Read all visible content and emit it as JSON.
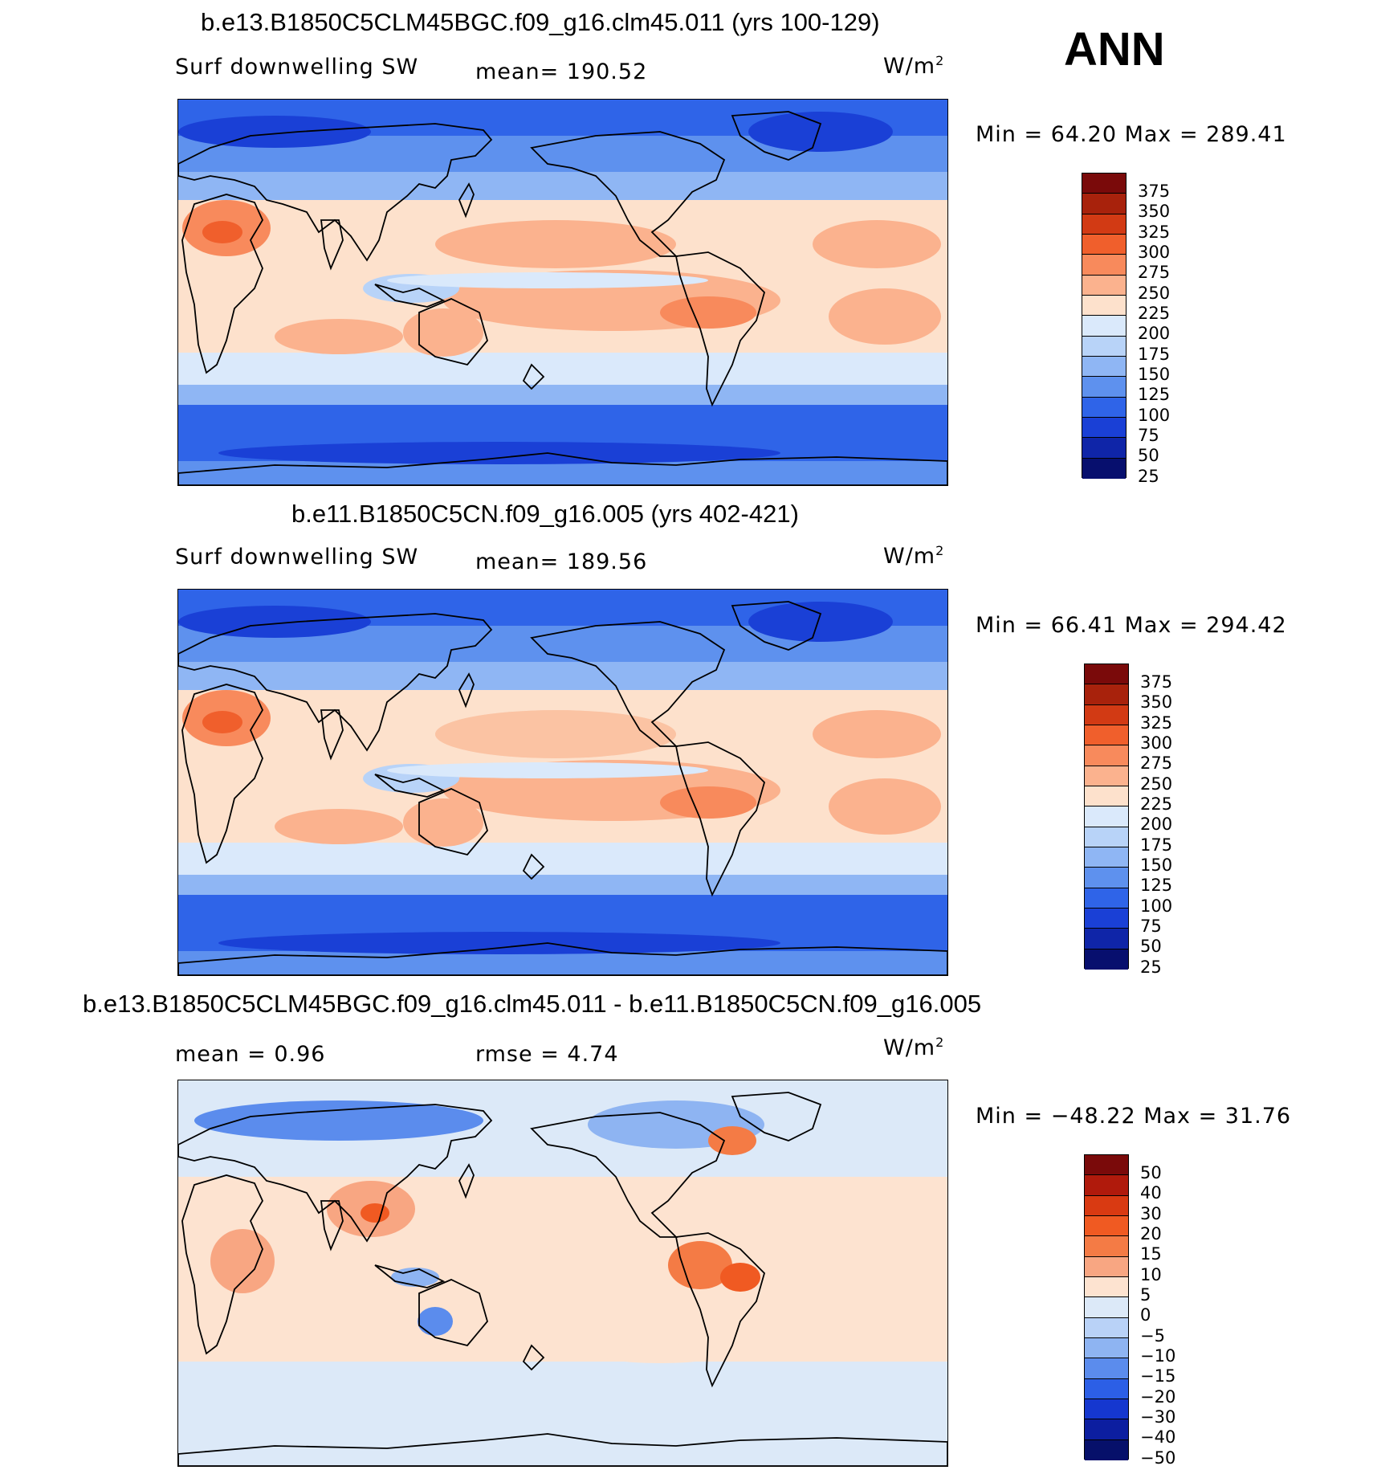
{
  "season": "ANN",
  "panels": [
    {
      "title": "b.e13.B1850C5CLM45BGC.f09_g16.clm45.011 (yrs 100-129)",
      "variable": "Surf downwelling SW",
      "mean_text": "mean=  190.52",
      "units": "W/m",
      "units_sup": "2",
      "minmax_text": "Min =   64.20  Max  =  289.41",
      "min": 64.2,
      "max": 289.41,
      "levels": [
        "375",
        "350",
        "325",
        "300",
        "275",
        "250",
        "225",
        "200",
        "175",
        "150",
        "125",
        "100",
        "75",
        "50",
        "25"
      ]
    },
    {
      "title": "b.e11.B1850C5CN.f09_g16.005 (yrs 402-421)",
      "variable": "Surf downwelling SW",
      "mean_text": "mean=  189.56",
      "units": "W/m",
      "units_sup": "2",
      "minmax_text": "Min =   66.41  Max  =  294.42",
      "min": 66.41,
      "max": 294.42,
      "levels": [
        "375",
        "350",
        "325",
        "300",
        "275",
        "250",
        "225",
        "200",
        "175",
        "150",
        "125",
        "100",
        "75",
        "50",
        "25"
      ]
    },
    {
      "title": "b.e13.B1850C5CLM45BGC.f09_g16.clm45.011 - b.e11.B1850C5CN.f09_g16.005",
      "mean_text": "mean  =     0.96",
      "rmse_text": "rmse  =     4.74",
      "units": "W/m",
      "units_sup": "2",
      "minmax_text": "Min  = −48.22  Max  =    31.76",
      "min": -48.22,
      "max": 31.76,
      "levels": [
        "50",
        "40",
        "30",
        "20",
        "15",
        "10",
        "5",
        "0",
        "−5",
        "−10",
        "−15",
        "−20",
        "−30",
        "−40",
        "−50"
      ]
    }
  ],
  "colors": {
    "abs_scale": [
      "#7a0a0a",
      "#a8220c",
      "#d23a14",
      "#f05f2c",
      "#f88a5c",
      "#fbb28e",
      "#fde1cc",
      "#dae9fb",
      "#b8d3f8",
      "#8fb6f4",
      "#5e91ee",
      "#2f64e8",
      "#1a40d6",
      "#0f25a8",
      "#070f6e"
    ],
    "diff_scale": [
      "#7a0a0a",
      "#b01a0c",
      "#d93a12",
      "#f05a22",
      "#f47b45",
      "#f8a682",
      "#fde3d0",
      "#dce9f8",
      "#b9d2f7",
      "#8eb4f2",
      "#5b8ced",
      "#2c5fe6",
      "#1537cf",
      "#0c1ea0",
      "#06106a"
    ],
    "coast": "#000000"
  }
}
